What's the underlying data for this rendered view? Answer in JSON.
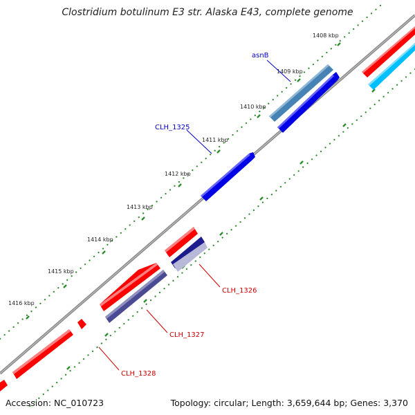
{
  "title": "Clostridium botulinum E3 str. Alaska E43, complete genome",
  "footer": {
    "accession": "Accession: NC_010723",
    "topology": "Topology: circular;",
    "length": "Length: 3,659,644 bp;",
    "genes": "Genes: 3,370"
  },
  "ticks": [
    "1408 kbp",
    "1409 kbp",
    "1410 kbp",
    "1411 kbp",
    "1412 kbp",
    "1413 kbp",
    "1414 kbp",
    "1415 kbp",
    "1416 kbp"
  ],
  "gene_labels": {
    "asnB": "asnB",
    "clh1325": "CLH_1325",
    "clh1326": "CLH_1326",
    "clh1327": "CLH_1327",
    "clh1328": "CLH_1328"
  },
  "colors": {
    "backbone": "#8a8a8a",
    "forward_gene": "#0000e6",
    "asnB_gene": "#4682b4",
    "reverse_gene": "#ff0000",
    "reverse_cyan": "#00bfff",
    "reverse_navy": "#1c1c8c",
    "reverse_slate": "#4b4b94",
    "tick_dots": "#2e8b2e",
    "label_forward": "#0000cc",
    "label_reverse": "#cc0000"
  }
}
